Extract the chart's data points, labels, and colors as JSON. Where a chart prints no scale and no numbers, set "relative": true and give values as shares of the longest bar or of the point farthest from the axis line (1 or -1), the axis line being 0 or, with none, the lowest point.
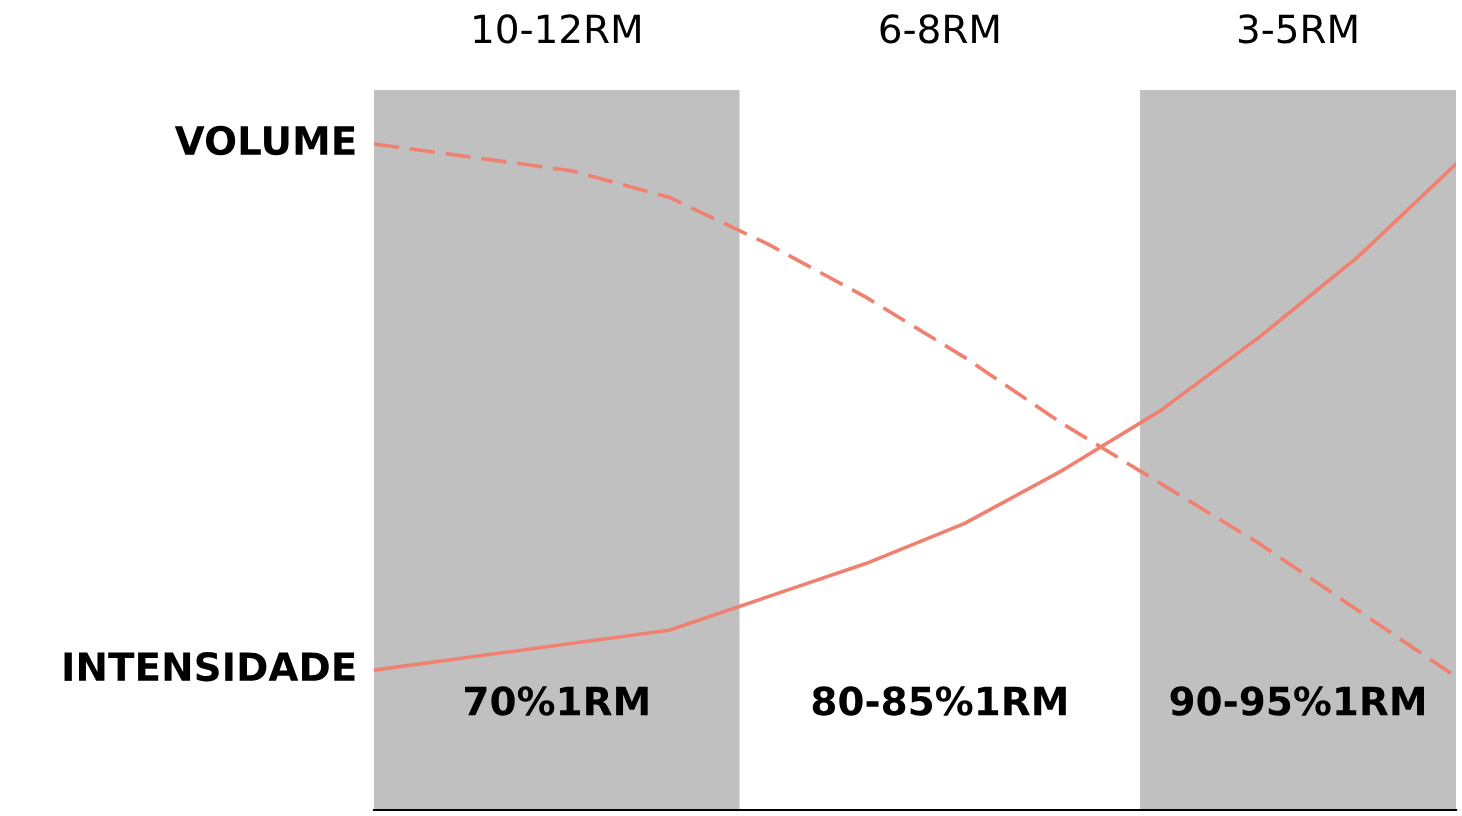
{
  "chart_data": {
    "type": "line",
    "relative": true,
    "grid": false,
    "legend": false,
    "marker": "none",
    "categories": [
      null,
      null,
      null,
      null,
      null,
      null,
      null,
      null,
      null,
      null,
      null,
      null
    ],
    "series": [
      {
        "name": "VOLUME",
        "color": "#f08070",
        "line_style": "dashed",
        "values": [
          1.0,
          0.98,
          0.96,
          0.92,
          0.85,
          0.77,
          0.68,
          0.58,
          0.49,
          0.4,
          0.3,
          0.2
        ]
      },
      {
        "name": "INTENSIDADE",
        "color": "#f08070",
        "line_style": "solid",
        "values": [
          0.21,
          0.23,
          0.25,
          0.27,
          0.32,
          0.37,
          0.43,
          0.51,
          0.6,
          0.71,
          0.83,
          0.97
        ]
      }
    ],
    "annotations": [
      "10-12RM",
      "6-8RM",
      "3-5RM",
      "70%1RM",
      "80-85%1RM",
      "90-95%1RM"
    ]
  }
}
